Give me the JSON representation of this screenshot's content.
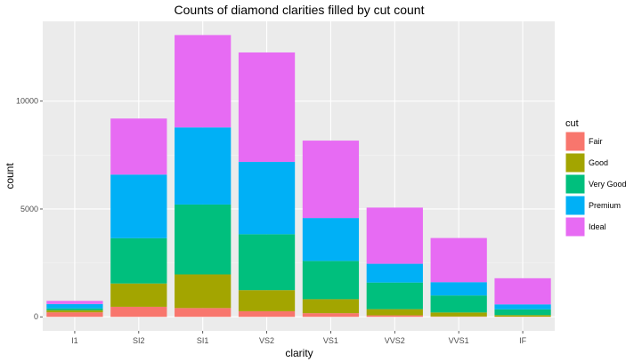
{
  "chart_data": {
    "type": "bar",
    "stacked": true,
    "title": "Counts of diamond clarities filled by cut count",
    "xlabel": "clarity",
    "ylabel": "count",
    "categories": [
      "I1",
      "SI2",
      "SI1",
      "VS2",
      "VS1",
      "VVS2",
      "VVS1",
      "IF"
    ],
    "yticks": [
      0,
      5000,
      10000
    ],
    "ytick_labels": [
      "0",
      "5000",
      "10000"
    ],
    "ylim": [
      -650,
      13700
    ],
    "grid": true,
    "legend_title": "cut",
    "legend_position": "right",
    "series": [
      {
        "name": "Fair",
        "color": "#F8766D",
        "values": [
          210,
          466,
          408,
          261,
          170,
          69,
          17,
          9
        ]
      },
      {
        "name": "Good",
        "color": "#A3A500",
        "values": [
          96,
          1081,
          1560,
          978,
          648,
          286,
          186,
          71
        ]
      },
      {
        "name": "Very Good",
        "color": "#00BF7D",
        "values": [
          84,
          2100,
          3240,
          2591,
          1775,
          1235,
          789,
          268
        ]
      },
      {
        "name": "Premium",
        "color": "#00B0F6",
        "values": [
          205,
          2949,
          3575,
          3357,
          1989,
          870,
          616,
          230
        ]
      },
      {
        "name": "Ideal",
        "color": "#E76BF3",
        "values": [
          146,
          2598,
          4282,
          5071,
          3589,
          2606,
          2047,
          1212
        ]
      }
    ]
  }
}
